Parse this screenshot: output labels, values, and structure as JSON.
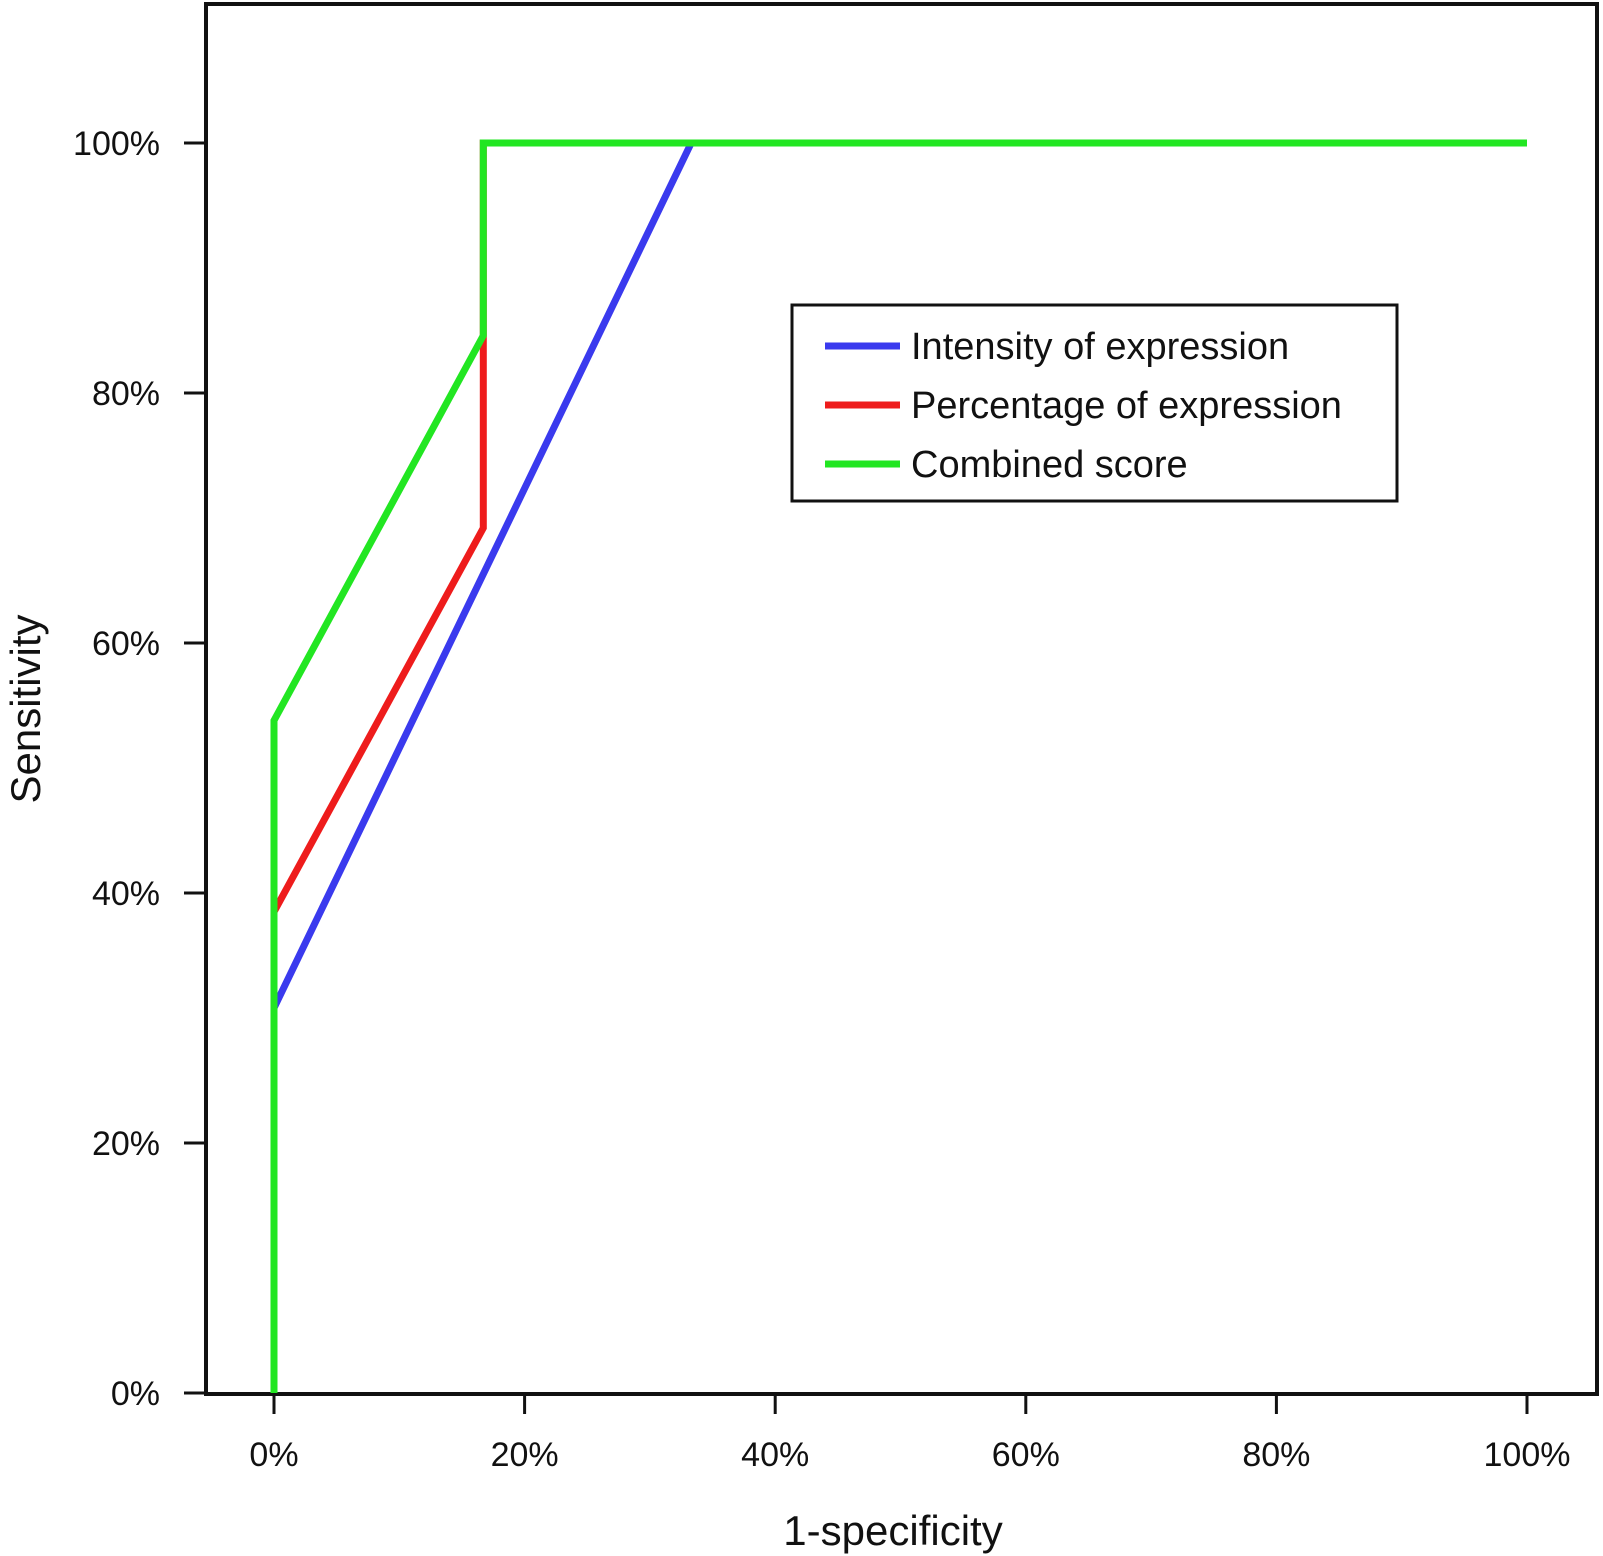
{
  "chart_data": {
    "type": "line",
    "title": "",
    "xlabel": "1-specificity",
    "ylabel": "Sensitivity",
    "xlim": [
      0,
      1
    ],
    "ylim": [
      0,
      1
    ],
    "x_ticks": [
      0,
      0.2,
      0.4,
      0.6,
      0.8,
      1.0
    ],
    "x_tick_labels": [
      "0%",
      "20%",
      "40%",
      "60%",
      "80%",
      "100%"
    ],
    "y_ticks": [
      0,
      0.2,
      0.4,
      0.6,
      0.8,
      1.0
    ],
    "y_tick_labels": [
      "0%",
      "20%",
      "40%",
      "60%",
      "80%",
      "100%"
    ],
    "grid": false,
    "legend_position": "top-right",
    "series": [
      {
        "name": "Intensity of expression",
        "color": "#3a3aee",
        "points": [
          [
            0,
            0
          ],
          [
            0,
            0.308
          ],
          [
            0.333,
            1.0
          ],
          [
            1.0,
            1.0
          ]
        ]
      },
      {
        "name": "Percentage of expression",
        "color": "#ee1c1c",
        "points": [
          [
            0,
            0
          ],
          [
            0,
            0.385
          ],
          [
            0.167,
            0.692
          ],
          [
            0.167,
            0.846
          ],
          [
            0.167,
            1.0
          ],
          [
            1.0,
            1.0
          ]
        ]
      },
      {
        "name": "Combined score",
        "color": "#22e622",
        "points": [
          [
            0,
            0
          ],
          [
            0,
            0.538
          ],
          [
            0.167,
            0.846
          ],
          [
            0.167,
            1.0
          ],
          [
            1.0,
            1.0
          ]
        ]
      }
    ]
  }
}
